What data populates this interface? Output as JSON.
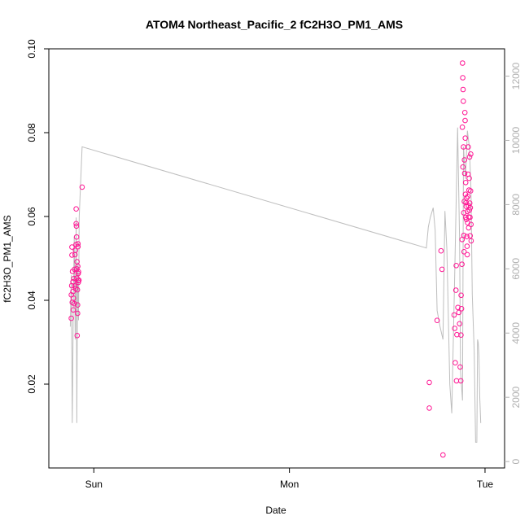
{
  "chart_data": {
    "type": "scatter",
    "title": "ATOM4 Northeast_Pacific_2 fC2H3O_PM1_AMS",
    "xlabel": "Date",
    "ylabel": "fC2H3O_PM1_AMS",
    "x_unit": "days since Sun 00:00",
    "xlim": [
      -0.23,
      2.1
    ],
    "x_ticks": [
      {
        "value": 0,
        "label": "Sun"
      },
      {
        "value": 1,
        "label": "Mon"
      },
      {
        "value": 2,
        "label": "Tue"
      }
    ],
    "ylim": [
      0.0,
      0.1
    ],
    "y_ticks": [
      0.02,
      0.04,
      0.06,
      0.08,
      0.1
    ],
    "y2lim": [
      -200,
      12850
    ],
    "y2_ticks": [
      0,
      2000,
      4000,
      6000,
      8000,
      10000,
      12000
    ],
    "colors": {
      "points": "#ff1493",
      "line": "#bebebe",
      "right_axis": "#b0b0b0"
    },
    "series": [
      {
        "role": "points",
        "points": [
          [
            -0.115,
            0.0357
          ],
          [
            -0.115,
            0.0413
          ],
          [
            -0.113,
            0.0435
          ],
          [
            -0.112,
            0.0508
          ],
          [
            -0.112,
            0.0527
          ],
          [
            -0.11,
            0.0395
          ],
          [
            -0.109,
            0.0469
          ],
          [
            -0.107,
            0.0421
          ],
          [
            -0.107,
            0.0444
          ],
          [
            -0.105,
            0.0377
          ],
          [
            -0.104,
            0.0405
          ],
          [
            -0.102,
            0.0452
          ],
          [
            -0.1,
            0.0392
          ],
          [
            -0.099,
            0.0474
          ],
          [
            -0.097,
            0.0434
          ],
          [
            -0.096,
            0.0509
          ],
          [
            -0.094,
            0.0519
          ],
          [
            -0.093,
            0.0428
          ],
          [
            -0.091,
            0.0533
          ],
          [
            -0.09,
            0.0618
          ],
          [
            -0.09,
            0.0583
          ],
          [
            -0.089,
            0.0577
          ],
          [
            -0.088,
            0.0551
          ],
          [
            -0.087,
            0.0475
          ],
          [
            -0.087,
            0.0453
          ],
          [
            -0.086,
            0.0492
          ],
          [
            -0.085,
            0.0316
          ],
          [
            -0.084,
            0.0425
          ],
          [
            -0.083,
            0.0369
          ],
          [
            -0.083,
            0.0389
          ],
          [
            -0.082,
            0.0481
          ],
          [
            -0.081,
            0.0535
          ],
          [
            -0.081,
            0.0528
          ],
          [
            -0.08,
            0.0464
          ],
          [
            -0.079,
            0.0447
          ],
          [
            -0.079,
            0.0443
          ],
          [
            -0.078,
            0.0468
          ],
          [
            -0.076,
            0.0448
          ],
          [
            -0.06,
            0.067
          ],
          [
            1.715,
            0.0204
          ],
          [
            1.715,
            0.0143
          ],
          [
            1.755,
            0.0352
          ],
          [
            1.775,
            0.0518
          ],
          [
            1.78,
            0.0474
          ],
          [
            1.785,
            0.0031
          ],
          [
            1.842,
            0.0365
          ],
          [
            1.845,
            0.0333
          ],
          [
            1.848,
            0.0251
          ],
          [
            1.851,
            0.0424
          ],
          [
            1.853,
            0.0483
          ],
          [
            1.854,
            0.0208
          ],
          [
            1.856,
            0.0318
          ],
          [
            1.861,
            0.0383
          ],
          [
            1.866,
            0.0371
          ],
          [
            1.87,
            0.0344
          ],
          [
            1.873,
            0.0241
          ],
          [
            1.876,
            0.0208
          ],
          [
            1.877,
            0.0317
          ],
          [
            1.878,
            0.0412
          ],
          [
            1.88,
            0.038
          ],
          [
            1.882,
            0.0486
          ],
          [
            1.883,
            0.0545
          ],
          [
            1.884,
            0.0813
          ],
          [
            1.885,
            0.0966
          ],
          [
            1.886,
            0.0931
          ],
          [
            1.887,
            0.0718
          ],
          [
            1.888,
            0.0903
          ],
          [
            1.889,
            0.0875
          ],
          [
            1.89,
            0.0766
          ],
          [
            1.891,
            0.0609
          ],
          [
            1.892,
            0.0555
          ],
          [
            1.893,
            0.0516
          ],
          [
            1.894,
            0.0636
          ],
          [
            1.895,
            0.0735
          ],
          [
            1.896,
            0.0703
          ],
          [
            1.897,
            0.0848
          ],
          [
            1.898,
            0.0829
          ],
          [
            1.899,
            0.0787
          ],
          [
            1.9,
            0.0653
          ],
          [
            1.901,
            0.0681
          ],
          [
            1.902,
            0.0598
          ],
          [
            1.903,
            0.0633
          ],
          [
            1.904,
            0.0624
          ],
          [
            1.905,
            0.0593
          ],
          [
            1.906,
            0.0644
          ],
          [
            1.907,
            0.0552
          ],
          [
            1.908,
            0.0529
          ],
          [
            1.909,
            0.0509
          ],
          [
            1.91,
            0.0612
          ],
          [
            1.911,
            0.0585
          ],
          [
            1.912,
            0.0648
          ],
          [
            1.913,
            0.0701
          ],
          [
            1.914,
            0.0766
          ],
          [
            1.915,
            0.0626
          ],
          [
            1.916,
            0.0573
          ],
          [
            1.917,
            0.0599
          ],
          [
            1.918,
            0.0663
          ],
          [
            1.919,
            0.0691
          ],
          [
            1.92,
            0.0615
          ],
          [
            1.921,
            0.0742
          ],
          [
            1.922,
            0.0632
          ],
          [
            1.923,
            0.0598
          ],
          [
            1.924,
            0.0554
          ],
          [
            1.925,
            0.0621
          ],
          [
            1.926,
            0.0661
          ],
          [
            1.927,
            0.0749
          ],
          [
            1.928,
            0.0581
          ],
          [
            1.929,
            0.0542
          ]
        ]
      },
      {
        "role": "line",
        "axis": "right",
        "points": [
          [
            -0.12,
            4200
          ],
          [
            -0.115,
            5800
          ],
          [
            -0.11,
            1200
          ],
          [
            -0.105,
            4600
          ],
          [
            -0.1,
            7000
          ],
          [
            -0.095,
            3800
          ],
          [
            -0.09,
            7600
          ],
          [
            -0.087,
            1200
          ],
          [
            -0.083,
            6200
          ],
          [
            -0.078,
            4400
          ],
          [
            -0.075,
            7600
          ],
          [
            -0.06,
            9800
          ],
          [
            1.7,
            6650
          ],
          [
            1.71,
            7300
          ],
          [
            1.72,
            7600
          ],
          [
            1.735,
            7900
          ],
          [
            1.745,
            7200
          ],
          [
            1.755,
            4700
          ],
          [
            1.77,
            4200
          ],
          [
            1.785,
            3800
          ],
          [
            1.795,
            7800
          ],
          [
            1.805,
            6600
          ],
          [
            1.82,
            2400
          ],
          [
            1.83,
            1500
          ],
          [
            1.845,
            5800
          ],
          [
            1.86,
            10400
          ],
          [
            1.87,
            6900
          ],
          [
            1.875,
            2800
          ],
          [
            1.885,
            1900
          ],
          [
            1.89,
            9800
          ],
          [
            1.9,
            8800
          ],
          [
            1.91,
            10300
          ],
          [
            1.92,
            9800
          ],
          [
            1.928,
            8500
          ],
          [
            1.935,
            5200
          ],
          [
            1.945,
            3400
          ],
          [
            1.952,
            600
          ],
          [
            1.958,
            600
          ],
          [
            1.962,
            3800
          ],
          [
            1.965,
            3700
          ],
          [
            1.969,
            3300
          ],
          [
            1.973,
            2000
          ],
          [
            1.978,
            1200
          ]
        ]
      }
    ]
  }
}
